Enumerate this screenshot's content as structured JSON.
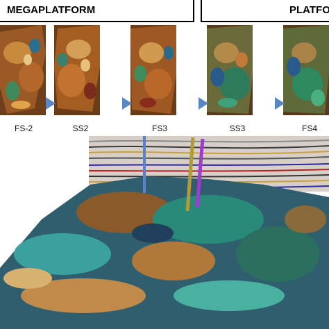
{
  "headers": {
    "megaplatform": "MEGAPLATFORM",
    "platform": "PLATFO"
  },
  "stages": [
    {
      "label": "FS-2"
    },
    {
      "label": "SS2"
    },
    {
      "label": "FS3"
    },
    {
      "label": "SS3"
    },
    {
      "label": "FS4"
    }
  ],
  "colors": {
    "arrow": "#5b86c4",
    "well_blue": "#5c82c9",
    "well_olive": "#b19b36",
    "well_purple": "#a03bd1",
    "panel_brown": "#7a4a1f",
    "seismic_gray": "#d8d0c8"
  }
}
